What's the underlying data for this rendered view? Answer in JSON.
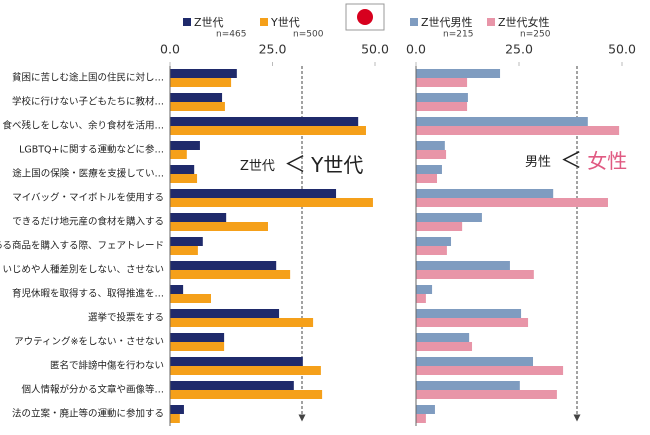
{
  "chart_data": [
    {
      "type": "bar",
      "orientation": "horizontal",
      "categories": [
        "貧困に苦しむ途上国の住民に対し…",
        "学校に行けない子どもたちに教材…",
        "食べ残しをしない、余り食材を活用…",
        "LGBTQ+に関する運動などに参…",
        "途上国の保険・医療を支援してい…",
        "マイバッグ・マイボトルを使用する",
        "できるだけ地元産の食材を購入する",
        "ある商品を購入する際、フェアトレード",
        "いじめや人種差別をしない、させない",
        "育児休暇を取得する、取得推進を…",
        "選挙で投票をする",
        "アウティング※をしない・させない",
        "匿名で誹謗中傷を行わない",
        "個人情報が分かる文章や画像等…",
        "法の立案・廃止等の運動に参加する"
      ],
      "series": [
        {
          "name": "Z世代",
          "n": "n=465",
          "color": "#1f2a6b",
          "values": [
            16.3,
            12.7,
            45.9,
            7.3,
            5.9,
            40.5,
            13.7,
            8.0,
            25.9,
            3.2,
            26.6,
            13.2,
            32.4,
            30.2,
            3.4
          ]
        },
        {
          "name": "Y世代",
          "n": "n=500",
          "color": "#f5a01a",
          "values": [
            14.9,
            13.4,
            47.8,
            4.1,
            6.6,
            49.5,
            23.9,
            6.8,
            29.3,
            10.0,
            34.9,
            13.2,
            36.8,
            37.1,
            2.4
          ]
        }
      ],
      "xlim": [
        0,
        50
      ],
      "xticks": [
        {
          "value": 0,
          "label": "0.0"
        },
        {
          "value": 25,
          "label": "25.0"
        },
        {
          "value": 50,
          "label": "50.0"
        }
      ],
      "annotation": [
        "Z世代",
        "＜",
        "Y世代"
      ]
    },
    {
      "type": "bar",
      "orientation": "horizontal",
      "series": [
        {
          "name": "Z世代男性",
          "n": "n=215",
          "color": "#7f9cc0",
          "values": [
            20.4,
            12.6,
            41.7,
            7.0,
            6.3,
            33.3,
            16.0,
            8.5,
            22.8,
            3.9,
            25.5,
            12.9,
            28.4,
            25.2,
            4.6
          ]
        },
        {
          "name": "Z世代女性",
          "n": "n=250",
          "color": "#e895a8",
          "values": [
            12.4,
            12.4,
            49.3,
            7.3,
            5.1,
            46.6,
            11.2,
            7.5,
            28.6,
            2.4,
            27.2,
            13.6,
            35.7,
            34.2,
            2.4
          ]
        }
      ],
      "xlim": [
        0,
        50
      ],
      "xticks": [
        {
          "value": 0,
          "label": "0.0"
        },
        {
          "value": 25,
          "label": "25.0"
        },
        {
          "value": 50,
          "label": "50.0"
        }
      ],
      "annotation": [
        "男性",
        "＜",
        "女性"
      ]
    }
  ]
}
